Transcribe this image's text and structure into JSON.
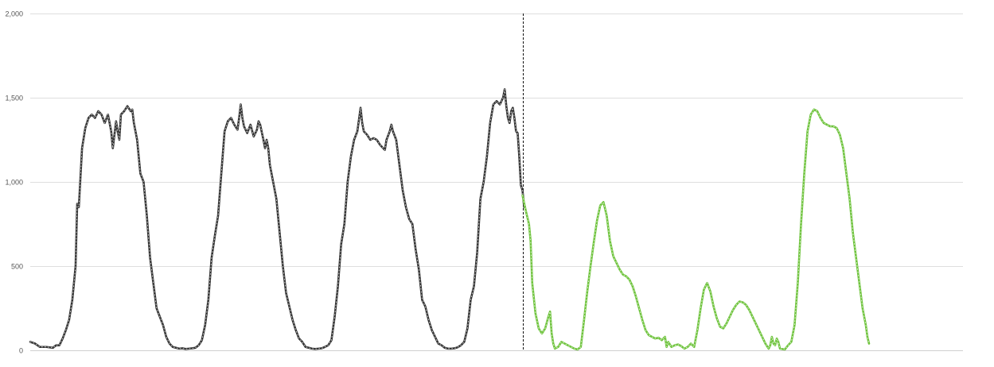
{
  "chart_data": {
    "type": "line",
    "title": "",
    "xlabel": "",
    "ylabel": "",
    "ylim": [
      0,
      2000
    ],
    "xlim": [
      0,
      576
    ],
    "grid": true,
    "legend": "none",
    "y_ticks": [
      "0",
      "500",
      "1,000",
      "1,500",
      "2,000"
    ],
    "y_tick_values": [
      0,
      500,
      1000,
      1500,
      2000
    ],
    "divider_x": 304,
    "series": [
      {
        "color": "#333333",
        "points": [
          [
            0,
            50
          ],
          [
            3,
            40
          ],
          [
            6,
            20
          ],
          [
            10,
            20
          ],
          [
            14,
            15
          ],
          [
            16,
            30
          ],
          [
            18,
            30
          ],
          [
            20,
            70
          ],
          [
            22,
            120
          ],
          [
            24,
            180
          ],
          [
            26,
            300
          ],
          [
            28,
            500
          ],
          [
            29,
            870
          ],
          [
            30,
            850
          ],
          [
            32,
            1200
          ],
          [
            34,
            1320
          ],
          [
            36,
            1380
          ],
          [
            38,
            1400
          ],
          [
            40,
            1380
          ],
          [
            42,
            1420
          ],
          [
            44,
            1400
          ],
          [
            46,
            1350
          ],
          [
            48,
            1400
          ],
          [
            50,
            1300
          ],
          [
            51,
            1200
          ],
          [
            52,
            1280
          ],
          [
            53,
            1360
          ],
          [
            54,
            1300
          ],
          [
            55,
            1250
          ],
          [
            56,
            1400
          ],
          [
            58,
            1420
          ],
          [
            60,
            1450
          ],
          [
            62,
            1420
          ],
          [
            63,
            1430
          ],
          [
            64,
            1350
          ],
          [
            66,
            1250
          ],
          [
            68,
            1050
          ],
          [
            70,
            1000
          ],
          [
            72,
            800
          ],
          [
            74,
            550
          ],
          [
            76,
            400
          ],
          [
            78,
            250
          ],
          [
            80,
            200
          ],
          [
            82,
            150
          ],
          [
            84,
            80
          ],
          [
            86,
            40
          ],
          [
            88,
            20
          ],
          [
            90,
            15
          ],
          [
            92,
            10
          ],
          [
            94,
            12
          ],
          [
            96,
            8
          ],
          [
            98,
            10
          ],
          [
            100,
            12
          ],
          [
            102,
            15
          ],
          [
            104,
            30
          ],
          [
            106,
            60
          ],
          [
            108,
            150
          ],
          [
            110,
            300
          ],
          [
            112,
            550
          ],
          [
            114,
            680
          ],
          [
            116,
            800
          ],
          [
            118,
            1050
          ],
          [
            120,
            1300
          ],
          [
            122,
            1360
          ],
          [
            124,
            1380
          ],
          [
            126,
            1340
          ],
          [
            128,
            1310
          ],
          [
            129,
            1380
          ],
          [
            130,
            1460
          ],
          [
            131,
            1380
          ],
          [
            132,
            1330
          ],
          [
            134,
            1290
          ],
          [
            136,
            1340
          ],
          [
            138,
            1270
          ],
          [
            140,
            1310
          ],
          [
            141,
            1360
          ],
          [
            142,
            1340
          ],
          [
            144,
            1250
          ],
          [
            145,
            1200
          ],
          [
            146,
            1250
          ],
          [
            147,
            1200
          ],
          [
            148,
            1100
          ],
          [
            150,
            1000
          ],
          [
            152,
            900
          ],
          [
            154,
            700
          ],
          [
            156,
            500
          ],
          [
            158,
            340
          ],
          [
            160,
            260
          ],
          [
            162,
            180
          ],
          [
            164,
            120
          ],
          [
            166,
            70
          ],
          [
            168,
            50
          ],
          [
            170,
            20
          ],
          [
            172,
            15
          ],
          [
            174,
            10
          ],
          [
            176,
            8
          ],
          [
            178,
            10
          ],
          [
            180,
            12
          ],
          [
            182,
            20
          ],
          [
            184,
            30
          ],
          [
            186,
            60
          ],
          [
            188,
            200
          ],
          [
            190,
            380
          ],
          [
            192,
            630
          ],
          [
            194,
            750
          ],
          [
            196,
            1000
          ],
          [
            198,
            1150
          ],
          [
            200,
            1250
          ],
          [
            202,
            1300
          ],
          [
            204,
            1440
          ],
          [
            205,
            1350
          ],
          [
            206,
            1300
          ],
          [
            208,
            1280
          ],
          [
            210,
            1250
          ],
          [
            212,
            1260
          ],
          [
            214,
            1250
          ],
          [
            216,
            1220
          ],
          [
            218,
            1200
          ],
          [
            219,
            1190
          ],
          [
            220,
            1250
          ],
          [
            222,
            1300
          ],
          [
            223,
            1340
          ],
          [
            224,
            1300
          ],
          [
            226,
            1250
          ],
          [
            228,
            1100
          ],
          [
            230,
            950
          ],
          [
            232,
            850
          ],
          [
            234,
            780
          ],
          [
            236,
            750
          ],
          [
            238,
            600
          ],
          [
            240,
            480
          ],
          [
            242,
            300
          ],
          [
            244,
            260
          ],
          [
            246,
            180
          ],
          [
            248,
            120
          ],
          [
            250,
            80
          ],
          [
            252,
            40
          ],
          [
            254,
            30
          ],
          [
            256,
            15
          ],
          [
            258,
            10
          ],
          [
            260,
            10
          ],
          [
            262,
            12
          ],
          [
            264,
            18
          ],
          [
            266,
            30
          ],
          [
            268,
            50
          ],
          [
            270,
            130
          ],
          [
            272,
            300
          ],
          [
            274,
            380
          ],
          [
            276,
            580
          ],
          [
            278,
            900
          ],
          [
            280,
            1000
          ],
          [
            282,
            1150
          ],
          [
            284,
            1350
          ],
          [
            286,
            1460
          ],
          [
            288,
            1480
          ],
          [
            290,
            1460
          ],
          [
            292,
            1500
          ],
          [
            293,
            1550
          ],
          [
            294,
            1450
          ],
          [
            295,
            1380
          ],
          [
            296,
            1350
          ],
          [
            297,
            1420
          ],
          [
            298,
            1440
          ],
          [
            299,
            1380
          ],
          [
            300,
            1300
          ],
          [
            301,
            1290
          ],
          [
            302,
            1150
          ],
          [
            303,
            980
          ],
          [
            304,
            950
          ],
          [
            305,
            850
          ]
        ]
      },
      {
        "color": "#6ec33c",
        "points": [
          [
            304,
            920
          ],
          [
            306,
            830
          ],
          [
            308,
            750
          ],
          [
            309,
            650
          ],
          [
            310,
            400
          ],
          [
            312,
            220
          ],
          [
            314,
            130
          ],
          [
            316,
            100
          ],
          [
            318,
            130
          ],
          [
            320,
            200
          ],
          [
            321,
            230
          ],
          [
            322,
            100
          ],
          [
            323,
            40
          ],
          [
            324,
            10
          ],
          [
            326,
            20
          ],
          [
            328,
            50
          ],
          [
            330,
            40
          ],
          [
            332,
            30
          ],
          [
            334,
            20
          ],
          [
            336,
            10
          ],
          [
            338,
            5
          ],
          [
            340,
            20
          ],
          [
            342,
            180
          ],
          [
            344,
            350
          ],
          [
            346,
            500
          ],
          [
            348,
            640
          ],
          [
            350,
            770
          ],
          [
            352,
            860
          ],
          [
            354,
            880
          ],
          [
            356,
            800
          ],
          [
            358,
            650
          ],
          [
            360,
            560
          ],
          [
            362,
            520
          ],
          [
            364,
            480
          ],
          [
            366,
            450
          ],
          [
            368,
            440
          ],
          [
            370,
            420
          ],
          [
            372,
            380
          ],
          [
            374,
            320
          ],
          [
            376,
            250
          ],
          [
            378,
            180
          ],
          [
            380,
            120
          ],
          [
            382,
            90
          ],
          [
            384,
            80
          ],
          [
            386,
            70
          ],
          [
            388,
            75
          ],
          [
            390,
            60
          ],
          [
            392,
            80
          ],
          [
            393,
            20
          ],
          [
            394,
            50
          ],
          [
            396,
            20
          ],
          [
            398,
            30
          ],
          [
            400,
            35
          ],
          [
            402,
            25
          ],
          [
            404,
            10
          ],
          [
            406,
            20
          ],
          [
            408,
            40
          ],
          [
            410,
            20
          ],
          [
            412,
            120
          ],
          [
            414,
            250
          ],
          [
            416,
            360
          ],
          [
            418,
            400
          ],
          [
            420,
            350
          ],
          [
            422,
            260
          ],
          [
            424,
            190
          ],
          [
            426,
            140
          ],
          [
            428,
            130
          ],
          [
            430,
            160
          ],
          [
            432,
            200
          ],
          [
            434,
            240
          ],
          [
            436,
            270
          ],
          [
            438,
            290
          ],
          [
            440,
            285
          ],
          [
            442,
            270
          ],
          [
            444,
            240
          ],
          [
            446,
            200
          ],
          [
            448,
            160
          ],
          [
            450,
            120
          ],
          [
            452,
            80
          ],
          [
            454,
            40
          ],
          [
            456,
            10
          ],
          [
            457,
            30
          ],
          [
            458,
            80
          ],
          [
            459,
            40
          ],
          [
            460,
            30
          ],
          [
            461,
            70
          ],
          [
            462,
            50
          ],
          [
            463,
            10
          ],
          [
            466,
            5
          ],
          [
            468,
            30
          ],
          [
            470,
            50
          ],
          [
            472,
            150
          ],
          [
            474,
            400
          ],
          [
            476,
            750
          ],
          [
            478,
            1050
          ],
          [
            480,
            1300
          ],
          [
            482,
            1400
          ],
          [
            484,
            1430
          ],
          [
            486,
            1420
          ],
          [
            488,
            1380
          ],
          [
            490,
            1350
          ],
          [
            492,
            1340
          ],
          [
            494,
            1330
          ],
          [
            496,
            1330
          ],
          [
            498,
            1320
          ],
          [
            500,
            1280
          ],
          [
            502,
            1200
          ],
          [
            504,
            1050
          ],
          [
            506,
            900
          ],
          [
            508,
            700
          ],
          [
            510,
            550
          ],
          [
            512,
            400
          ],
          [
            514,
            250
          ],
          [
            516,
            150
          ],
          [
            517,
            80
          ],
          [
            518,
            40
          ]
        ]
      }
    ]
  }
}
